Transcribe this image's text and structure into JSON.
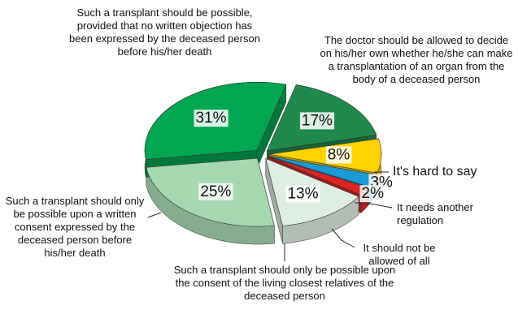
{
  "chart_data": {
    "type": "pie",
    "categories": [
      "The doctor should be allowed to decide on his/her own whether he/she can make a transplantation of an organ from the body of a deceased person",
      "It's hard to say",
      "It needs another regulation",
      "It should not be allowed of all",
      "Such a transplant should only be possible upon the consent of the living closest relatives of the deceased person",
      "Such a transplant should only be possible upon a written consent expressed by the deceased person before his/her death",
      "Such a transplant should be possible, provided that no written objection has been expressed by the deceased person before his/her death"
    ],
    "values": [
      17,
      8,
      3,
      2,
      13,
      25,
      31
    ],
    "value_labels": [
      "17%",
      "8%",
      "3%",
      "2%",
      "13%",
      "25%",
      "31%"
    ],
    "colors": [
      "#1f8a4c",
      "#ffd200",
      "#1a9ad6",
      "#e02424",
      "#dfeee2",
      "#a6d8b0",
      "#00a650"
    ]
  }
}
